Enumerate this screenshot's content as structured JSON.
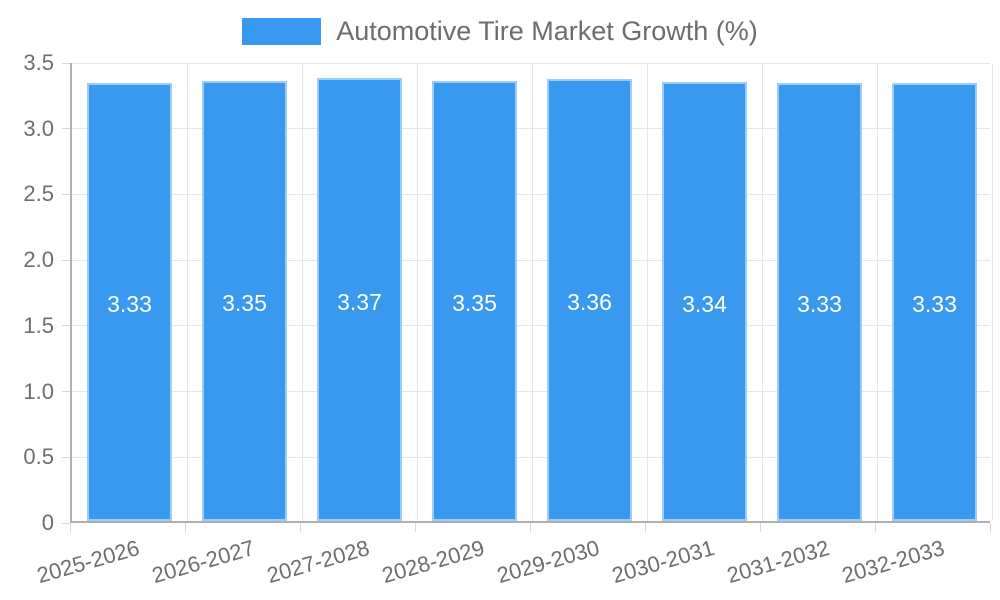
{
  "legend": {
    "label": "Automotive Tire Market Growth (%)"
  },
  "colors": {
    "bar": "#3999ee",
    "grid": "#e6e6e6",
    "axis": "#b0b0b0",
    "tick": "#d9d9d9",
    "text": "#6e6e6e",
    "value_label": "#ffffff",
    "background": "#ffffff"
  },
  "chart_data": {
    "type": "bar",
    "title": "Automotive Tire Market Growth (%)",
    "categories": [
      "2025-2026",
      "2026-2027",
      "2027-2028",
      "2028-2029",
      "2029-2030",
      "2030-2031",
      "2031-2032",
      "2032-2033"
    ],
    "values": [
      3.33,
      3.35,
      3.37,
      3.35,
      3.36,
      3.34,
      3.33,
      3.33
    ],
    "value_labels": [
      "3.33",
      "3.35",
      "3.37",
      "3.35",
      "3.36",
      "3.34",
      "3.33",
      "3.33"
    ],
    "xlabel": "",
    "ylabel": "",
    "y_ticks": [
      "0",
      "0.5",
      "1.0",
      "1.5",
      "2.0",
      "2.5",
      "3.0",
      "3.5"
    ],
    "y_tick_values": [
      0,
      0.5,
      1.0,
      1.5,
      2.0,
      2.5,
      3.0,
      3.5
    ],
    "ylim": [
      0,
      3.5
    ],
    "grid": true,
    "legend_position": "top",
    "x_tick_rotation_deg": -16,
    "value_labels_position": "center"
  }
}
